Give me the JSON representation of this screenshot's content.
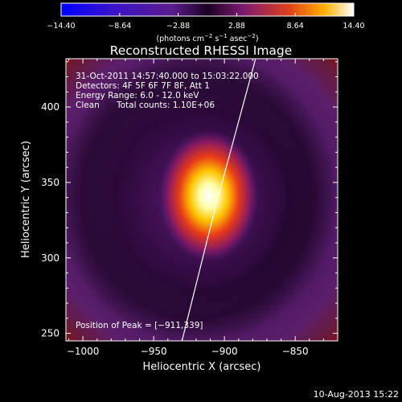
{
  "figure": {
    "title": "Reconstructed RHESSI Image",
    "xlabel": "Heliocentric X (arcsec)",
    "ylabel": "Heliocentric Y (arcsec)",
    "xticks": [
      "−1000",
      "−950",
      "−900",
      "−850"
    ],
    "xtick_values": [
      -1000,
      -950,
      -900,
      -850
    ],
    "yticks": [
      "250",
      "300",
      "350",
      "400"
    ],
    "ytick_values": [
      250,
      300,
      350,
      400
    ],
    "x_range": [
      -1012,
      -820
    ],
    "y_range": [
      245,
      432
    ],
    "footer_date": "10-Aug-2013 15:22"
  },
  "colorbar": {
    "ticks": [
      "−14.40",
      "−8.64",
      "−2.88",
      "2.88",
      "8.64",
      "14.40"
    ],
    "range": [
      -14.4,
      14.4
    ],
    "units_prefix": "(photons cm",
    "units_exp1": "−2",
    "units_mid": " s",
    "units_exp2": "−1",
    "units_mid2": " asec",
    "units_exp3": "−2",
    "units_suffix": ")"
  },
  "annotations": {
    "time_range": "31-Oct-2011 14:57:40.000 to 15:03:22.000",
    "detectors": "Detectors: 4F 5F 6F 7F 8F, Att 1",
    "energy": "Energy Range: 6.0 - 12.0 keV",
    "clean": "Clean",
    "total_counts": "Total counts: 1.10E+06",
    "peak": "Position of Peak = [−911,339]"
  },
  "peak": {
    "x": -911,
    "y": 339
  },
  "limb_curve": [
    [
      -930,
      245
    ],
    [
      -918,
      290
    ],
    [
      -906,
      335
    ],
    [
      -893,
      380
    ],
    [
      -878,
      432
    ]
  ]
}
